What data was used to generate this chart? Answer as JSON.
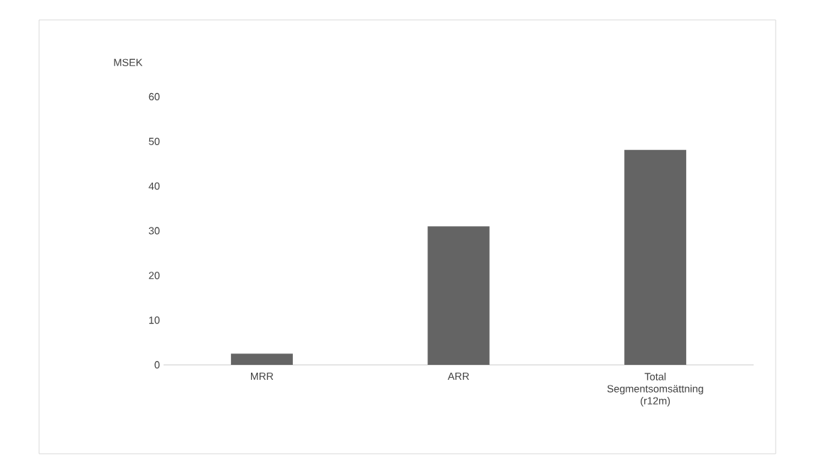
{
  "chart_data": {
    "type": "bar",
    "ylabel": "MSEK",
    "categories": [
      "MRR",
      "ARR",
      "Total Segmentsomsättning (r12m)"
    ],
    "values": [
      2.5,
      31.0,
      48.1
    ],
    "color": "#646464",
    "ylim": [
      0,
      60
    ],
    "yticks": [
      0,
      10,
      20,
      30,
      40,
      50,
      60
    ]
  }
}
